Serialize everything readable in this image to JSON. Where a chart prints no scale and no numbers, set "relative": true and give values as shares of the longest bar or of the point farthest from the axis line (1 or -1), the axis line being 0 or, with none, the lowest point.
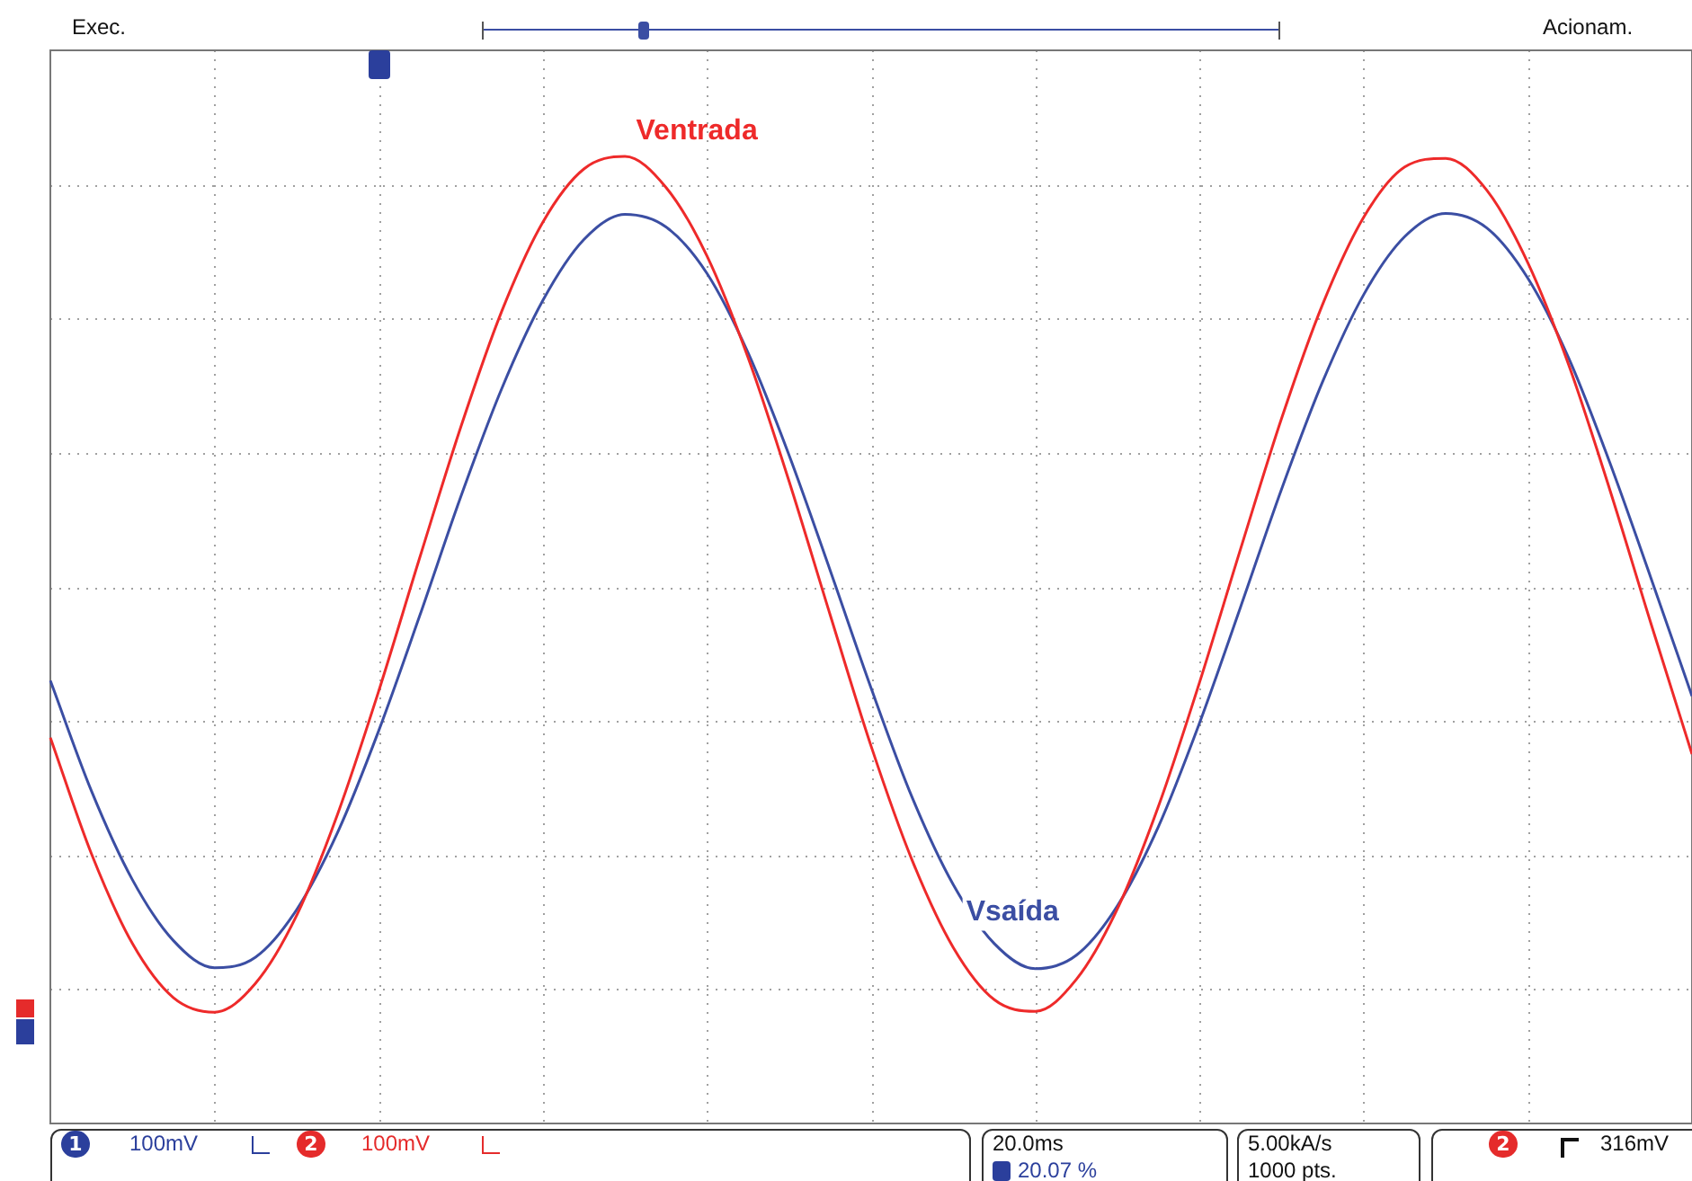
{
  "chart_data": {
    "type": "line",
    "relative": true,
    "grid": true,
    "legend": false,
    "marker": "none",
    "line_style": "solid",
    "categories": [
      null,
      null,
      null,
      null,
      null,
      null,
      null,
      null,
      null,
      null,
      null,
      null,
      null,
      null,
      null,
      null,
      null,
      null,
      null,
      null,
      null,
      null,
      null,
      null,
      null,
      null,
      null,
      null,
      null,
      null,
      null,
      null,
      null,
      null,
      null,
      null,
      null,
      null,
      null,
      null,
      null
    ],
    "series": [
      {
        "name": "Ventrada",
        "color": "#ee2a2a",
        "values": [
          0.399,
          0.279,
          0.186,
          0.13,
          0.115,
          0.145,
          0.215,
          0.32,
          0.447,
          0.585,
          0.72,
          0.84,
          0.932,
          0.987,
          1,
          0.968,
          0.897,
          0.792,
          0.664,
          0.526,
          0.39,
          0.272,
          0.182,
          0.128,
          0.116,
          0.149,
          0.222,
          0.328,
          0.456,
          0.594,
          0.729,
          0.847,
          0.937,
          0.989,
          0.998,
          0.965,
          0.89,
          0.784,
          0.655,
          0.517,
          0.382
        ]
      },
      {
        "name": "Vsaída",
        "color": "#3b4ea3",
        "values": [
          0.458,
          0.344,
          0.252,
          0.189,
          0.161,
          0.172,
          0.221,
          0.301,
          0.406,
          0.525,
          0.648,
          0.76,
          0.851,
          0.914,
          0.94,
          0.927,
          0.879,
          0.797,
          0.691,
          0.572,
          0.45,
          0.337,
          0.247,
          0.186,
          0.16,
          0.174,
          0.225,
          0.307,
          0.414,
          0.534,
          0.656,
          0.767,
          0.857,
          0.917,
          0.941,
          0.926,
          0.874,
          0.791,
          0.683,
          0.564,
          0.442
        ]
      }
    ],
    "annotations": [
      "Exec.",
      "Acionam.",
      "1",
      "100mV",
      "2",
      "100mV",
      "20.0ms",
      "20.07 %",
      "5.00kA/s",
      "1000 pts.",
      "2",
      "316mV"
    ]
  }
}
